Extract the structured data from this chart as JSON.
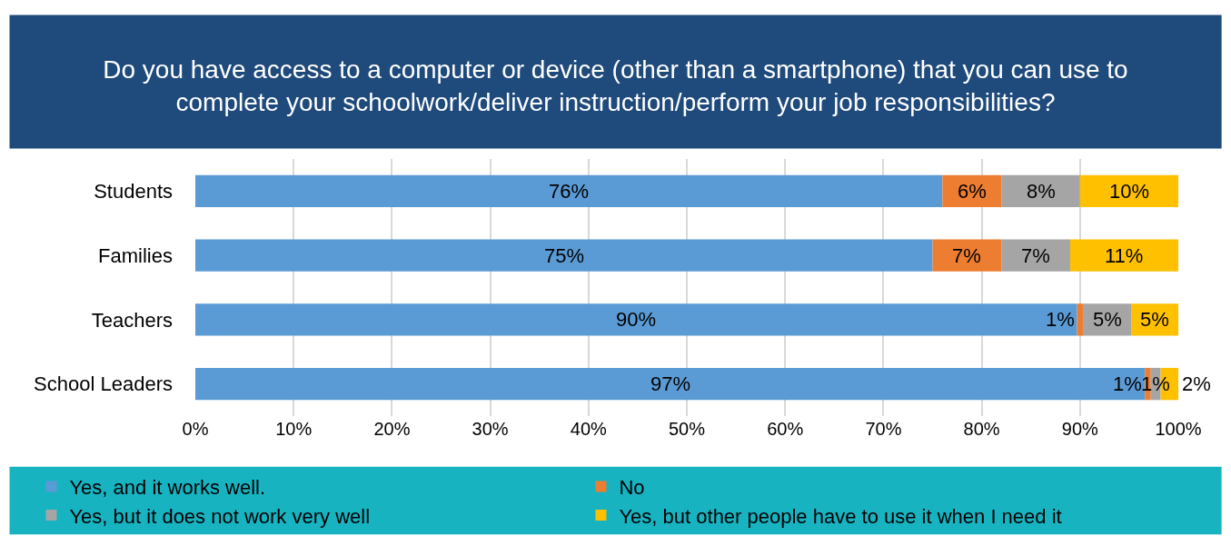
{
  "chart_data": {
    "type": "bar",
    "orientation": "horizontal",
    "stacked": true,
    "title": "Do you have access to a computer or device (other than a smartphone) that you can use to complete your schoolwork/deliver instruction/perform your job responsibilities?",
    "categories": [
      "Students",
      "Families",
      "Teachers",
      "School Leaders"
    ],
    "series": [
      {
        "name": "Yes, and it works well.",
        "color": "#5b9bd5",
        "values": [
          76,
          75,
          89.7,
          96.6
        ],
        "value_labels": [
          "76%",
          "75%",
          "90%",
          "97%"
        ]
      },
      {
        "name": "No",
        "color": "#ed7d31",
        "values": [
          6,
          7,
          0.6,
          0.6
        ],
        "value_labels": [
          "6%",
          "7%",
          "1%",
          "1%"
        ]
      },
      {
        "name": "Yes, but it does not work very well",
        "color": "#a5a5a5",
        "values": [
          8,
          7,
          4.9,
          1.0
        ],
        "value_labels": [
          "8%",
          "7%",
          "5%",
          "1%"
        ]
      },
      {
        "name": "Yes, but other people have to use it when I need it",
        "color": "#ffc000",
        "values": [
          10,
          11,
          4.8,
          1.8
        ],
        "value_labels": [
          "10%",
          "11%",
          "5%",
          "2%"
        ]
      }
    ],
    "xlim": [
      0,
      100
    ],
    "xticks": [
      {
        "value": 0,
        "label": "0%"
      },
      {
        "value": 10,
        "label": "10%"
      },
      {
        "value": 20,
        "label": "20%"
      },
      {
        "value": 30,
        "label": "30%"
      },
      {
        "value": 40,
        "label": "40%"
      },
      {
        "value": 50,
        "label": "50%"
      },
      {
        "value": 60,
        "label": "60%"
      },
      {
        "value": 70,
        "label": "70%"
      },
      {
        "value": 80,
        "label": "80%"
      },
      {
        "value": 90,
        "label": "90%"
      },
      {
        "value": 100,
        "label": "100%"
      }
    ],
    "grid": "x",
    "legend": "bottom"
  }
}
